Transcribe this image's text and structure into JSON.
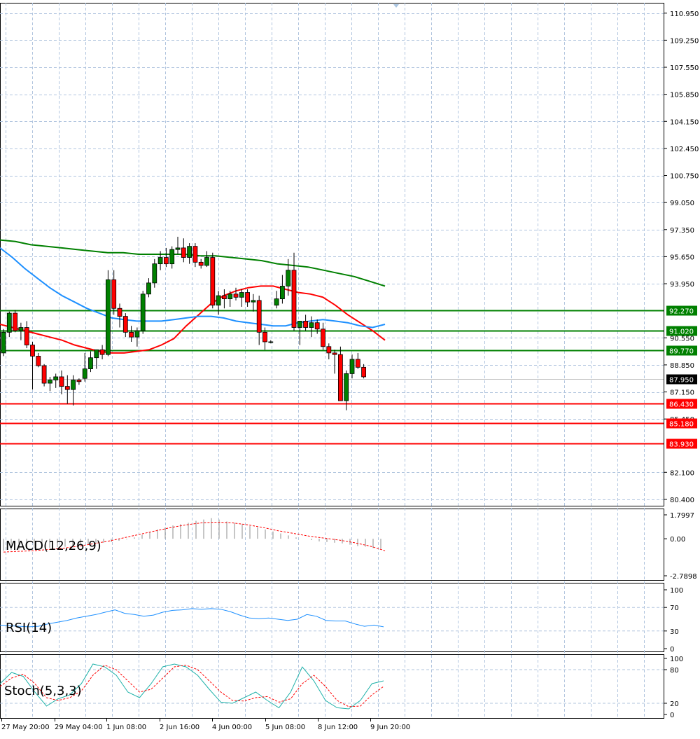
{
  "chart_data": [
    {
      "type": "candlestick",
      "title": "",
      "price_axis": {
        "ticks": [
          "110.950",
          "109.250",
          "107.550",
          "105.850",
          "104.150",
          "102.450",
          "100.750",
          "99.050",
          "97.350",
          "95.650",
          "93.950",
          "90.550",
          "88.850",
          "87.150",
          "85.450",
          "82.100",
          "80.400"
        ],
        "ylim": [
          80.0,
          111.6
        ]
      },
      "time_axis": {
        "labels": [
          "27 May 20:00",
          "29 May 04:00",
          "1 Jun 08:00",
          "2 Jun 16:00",
          "4 Jun 00:00",
          "5 Jun 08:00",
          "8 Jun 12:00",
          "9 Jun 20:00"
        ]
      },
      "current_price": "87.950",
      "resistance_levels": [
        "92.270",
        "91.020",
        "89.770"
      ],
      "support_levels": [
        "86.430",
        "85.180",
        "83.930"
      ],
      "ohlc": [
        [
          89.6,
          91.1,
          89.4,
          90.9
        ],
        [
          90.9,
          92.2,
          90.6,
          92.1
        ],
        [
          92.1,
          92.3,
          90.9,
          91.0
        ],
        [
          91.0,
          91.5,
          90.4,
          91.2
        ],
        [
          91.2,
          91.6,
          89.9,
          90.1
        ],
        [
          90.1,
          90.3,
          87.3,
          89.4
        ],
        [
          89.4,
          89.6,
          88.7,
          88.8
        ],
        [
          88.8,
          88.9,
          87.5,
          87.7
        ],
        [
          87.7,
          88.1,
          87.2,
          87.9
        ],
        [
          87.9,
          88.3,
          87.4,
          88.1
        ],
        [
          88.1,
          88.5,
          87.0,
          87.5
        ],
        [
          87.5,
          88.2,
          86.4,
          87.3
        ],
        [
          87.3,
          88.2,
          86.3,
          87.9
        ],
        [
          87.9,
          88.0,
          87.6,
          87.8
        ],
        [
          88.0,
          89.6,
          87.8,
          88.6
        ],
        [
          88.6,
          89.7,
          88.4,
          89.3
        ],
        [
          89.3,
          89.8,
          88.6,
          89.8
        ],
        [
          89.8,
          90.1,
          89.2,
          89.5
        ],
        [
          89.5,
          94.8,
          89.4,
          94.2
        ],
        [
          94.2,
          94.8,
          92.0,
          92.4
        ],
        [
          92.4,
          92.7,
          91.2,
          91.9
        ],
        [
          91.9,
          92.1,
          90.6,
          90.9
        ],
        [
          90.9,
          91.3,
          90.3,
          90.6
        ],
        [
          90.6,
          91.2,
          90.0,
          91.0
        ],
        [
          91.0,
          93.5,
          90.8,
          93.3
        ],
        [
          93.3,
          94.3,
          93.1,
          94.0
        ],
        [
          94.0,
          95.5,
          93.7,
          95.2
        ],
        [
          95.2,
          96.0,
          94.8,
          95.6
        ],
        [
          95.6,
          96.2,
          95.0,
          95.2
        ],
        [
          95.2,
          96.3,
          94.9,
          96.1
        ],
        [
          96.1,
          96.9,
          95.8,
          96.2
        ],
        [
          96.2,
          96.8,
          95.3,
          95.6
        ],
        [
          95.6,
          96.5,
          95.2,
          96.3
        ],
        [
          96.3,
          96.5,
          95.0,
          95.3
        ],
        [
          95.3,
          95.5,
          94.9,
          95.1
        ],
        [
          95.1,
          96.0,
          95.0,
          95.6
        ],
        [
          95.6,
          95.9,
          92.4,
          92.6
        ],
        [
          92.6,
          93.5,
          92.0,
          93.2
        ],
        [
          93.2,
          93.6,
          92.4,
          93.0
        ],
        [
          93.0,
          93.5,
          92.5,
          93.3
        ],
        [
          93.3,
          93.7,
          92.9,
          93.1
        ],
        [
          93.1,
          93.6,
          92.5,
          93.4
        ],
        [
          93.4,
          93.6,
          92.5,
          92.8
        ],
        [
          92.8,
          93.3,
          92.2,
          92.9
        ],
        [
          92.9,
          93.2,
          90.1,
          90.9
        ],
        [
          90.9,
          91.2,
          89.8,
          90.3
        ],
        [
          90.3,
          90.4,
          90.2,
          90.3
        ],
        [
          92.6,
          93.5,
          92.4,
          93.0
        ],
        [
          93.0,
          94.5,
          92.7,
          93.8
        ],
        [
          93.8,
          95.5,
          93.2,
          94.8
        ],
        [
          94.8,
          95.9,
          91.0,
          91.2
        ],
        [
          91.2,
          91.5,
          90.1,
          91.6
        ],
        [
          91.6,
          92.0,
          91.0,
          91.2
        ],
        [
          91.2,
          91.9,
          90.6,
          91.5
        ],
        [
          91.5,
          91.7,
          90.8,
          91.1
        ],
        [
          91.1,
          91.5,
          89.8,
          90.0
        ],
        [
          90.0,
          90.2,
          89.2,
          89.6
        ],
        [
          89.6,
          89.8,
          88.3,
          89.5
        ],
        [
          89.5,
          90.0,
          86.6,
          86.6
        ],
        [
          86.6,
          88.5,
          86.0,
          88.3
        ],
        [
          88.3,
          89.5,
          88.0,
          89.2
        ],
        [
          89.2,
          89.6,
          88.6,
          88.7
        ],
        [
          88.7,
          88.9,
          88.0,
          88.1
        ]
      ],
      "series": [
        {
          "name": "",
          "color": "#ff0000",
          "values": [
            91.4,
            91.2,
            91.0,
            90.8,
            90.6,
            90.4,
            90.1,
            89.9,
            89.7,
            89.6,
            89.6,
            89.7,
            89.8,
            90.1,
            90.5,
            91.3,
            92.0,
            92.7,
            93.2,
            93.5,
            93.7,
            93.8,
            93.8,
            93.6,
            93.4,
            93.3,
            93.1,
            92.6,
            92.0,
            91.5,
            91.0,
            90.4
          ]
        },
        {
          "name": "",
          "color": "#1e90ff",
          "values": [
            96.2,
            95.6,
            94.9,
            94.3,
            93.7,
            93.2,
            92.8,
            92.4,
            92.1,
            91.8,
            91.7,
            91.6,
            91.6,
            91.6,
            91.7,
            91.8,
            91.9,
            91.9,
            91.8,
            91.6,
            91.5,
            91.4,
            91.3,
            91.3,
            91.5,
            91.6,
            91.7,
            91.6,
            91.5,
            91.3,
            91.2,
            91.4
          ]
        },
        {
          "name": "",
          "color": "#008000",
          "values": [
            96.7,
            96.6,
            96.4,
            96.3,
            96.2,
            96.1,
            96.0,
            95.9,
            95.9,
            95.8,
            95.8,
            95.8,
            95.8,
            95.7,
            95.7,
            95.6,
            95.5,
            95.4,
            95.2,
            95.1,
            95.0,
            94.8,
            94.6,
            94.4,
            94.1,
            93.8
          ]
        }
      ]
    },
    {
      "type": "bar",
      "title": "MACD(12,26,9)",
      "ticks": [
        "1.7997",
        "0.00",
        "-2.7898"
      ],
      "ylim": [
        -2.7898,
        1.7997
      ],
      "histogram": [
        -0.9,
        -0.85,
        -0.8,
        -0.75,
        -0.72,
        -0.7,
        -0.68,
        -0.62,
        -0.6,
        -0.55,
        -0.5,
        -0.45,
        -0.4,
        -0.3,
        -0.25,
        -0.15,
        -0.05,
        0.1,
        0.3,
        0.5,
        0.7,
        0.85,
        1.0,
        1.1,
        1.2,
        1.35,
        1.45,
        1.55,
        1.45,
        1.3,
        1.2,
        1.1,
        0.95,
        0.85,
        0.7,
        0.55,
        0.4,
        0.25,
        0.1,
        0.0,
        -0.1,
        -0.2,
        -0.25,
        -0.3,
        -0.35,
        -0.45,
        -0.55,
        -0.6,
        -0.7,
        -0.75
      ],
      "signal": [
        -1.0,
        -0.95,
        -0.9,
        -0.8,
        -0.7,
        -0.55,
        -0.35,
        -0.15,
        0.1,
        0.35,
        0.6,
        0.85,
        1.05,
        1.2,
        1.25,
        1.2,
        1.05,
        0.85,
        0.6,
        0.4,
        0.2,
        0.05,
        -0.1,
        -0.3,
        -0.55,
        -0.9
      ]
    },
    {
      "type": "line",
      "title": "RSI(14)",
      "ticks": [
        "100",
        "70",
        "30",
        "0"
      ],
      "ylim": [
        0,
        100
      ],
      "values": [
        40,
        39,
        38,
        37,
        38,
        42,
        45,
        48,
        52,
        55,
        58,
        62,
        66,
        60,
        58,
        55,
        57,
        62,
        65,
        66,
        68,
        67,
        68,
        67,
        63,
        57,
        52,
        51,
        52,
        50,
        48,
        50,
        58,
        55,
        48,
        47,
        47,
        42,
        38,
        40,
        37
      ]
    },
    {
      "type": "line",
      "title": "Stoch(5,3,3)",
      "ticks": [
        "100",
        "80",
        "20",
        "0"
      ],
      "ylim": [
        0,
        100
      ],
      "main": [
        55,
        75,
        68,
        40,
        15,
        28,
        35,
        55,
        90,
        85,
        70,
        40,
        30,
        55,
        85,
        90,
        85,
        70,
        45,
        22,
        20,
        30,
        40,
        25,
        12,
        40,
        85,
        60,
        25,
        12,
        10,
        25,
        55,
        60
      ],
      "signal": [
        50,
        65,
        72,
        55,
        30,
        25,
        30,
        42,
        70,
        88,
        80,
        60,
        40,
        45,
        65,
        85,
        88,
        80,
        60,
        40,
        25,
        24,
        30,
        32,
        22,
        28,
        55,
        70,
        50,
        25,
        14,
        15,
        35,
        50
      ]
    }
  ]
}
